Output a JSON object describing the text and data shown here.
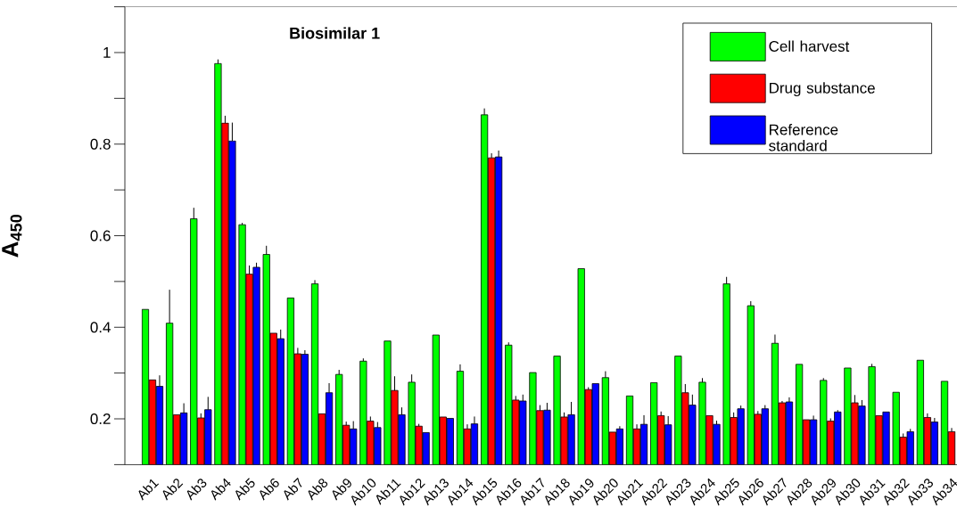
{
  "chart_data": {
    "type": "bar",
    "title": "Biosimilar 1",
    "ylabel": "A$_{450}$",
    "categories": [
      "Ab1",
      "Ab2",
      "Ab3",
      "Ab4",
      "Ab5",
      "Ab6",
      "Ab7",
      "Ab8",
      "Ab9",
      "Ab10",
      "Ab11",
      "Ab12",
      "Ab13",
      "Ab14",
      "Ab15",
      "Ab16",
      "Ab17",
      "Ab18",
      "Ab19",
      "Ab20",
      "Ab21",
      "Ab22",
      "Ab23",
      "Ab24",
      "Ab25",
      "Ab26",
      "Ab27",
      "Ab28",
      "Ab29",
      "Ab30",
      "Ab31",
      "Ab32",
      "Ab33",
      "Ab34"
    ],
    "series": [
      {
        "name": "Cell harvest",
        "color": "#00ff00",
        "values": [
          0.439,
          0.409,
          0.637,
          0.976,
          0.624,
          0.559,
          0.464,
          0.495,
          0.297,
          0.326,
          0.37,
          0.28,
          0.383,
          0.304,
          0.864,
          0.361,
          0.301,
          0.337,
          0.528,
          0.29,
          0.25,
          0.279,
          0.337,
          0.28,
          0.495,
          0.447,
          0.365,
          0.319,
          0.284,
          0.311,
          0.314,
          0.258,
          0.328,
          0.282
        ],
        "errors": [
          null,
          [
            0.409,
            0.482
          ],
          [
            0.637,
            0.661
          ],
          [
            0.976,
            0.985
          ],
          [
            0.624,
            0.628
          ],
          [
            0.559,
            0.578
          ],
          null,
          [
            0.495,
            0.503
          ],
          [
            0.297,
            0.307
          ],
          [
            0.326,
            0.332
          ],
          null,
          [
            0.28,
            0.297
          ],
          null,
          [
            0.304,
            0.319
          ],
          [
            0.864,
            0.878
          ],
          [
            0.361,
            0.367
          ],
          null,
          null,
          null,
          [
            0.29,
            0.304
          ],
          null,
          null,
          null,
          [
            0.28,
            0.289
          ],
          [
            0.495,
            0.51
          ],
          [
            0.447,
            0.457
          ],
          [
            0.365,
            0.384
          ],
          null,
          [
            0.284,
            0.289
          ],
          null,
          [
            0.314,
            0.32
          ],
          null,
          null,
          null
        ]
      },
      {
        "name": "Drug substance",
        "color": "#ff0000",
        "values": [
          0.285,
          0.209,
          0.202,
          0.846,
          0.516,
          0.387,
          0.342,
          0.211,
          0.186,
          0.195,
          0.262,
          0.184,
          0.204,
          0.178,
          0.77,
          0.241,
          0.218,
          0.204,
          0.264,
          0.171,
          0.178,
          0.207,
          0.257,
          0.207,
          0.203,
          0.21,
          0.235,
          0.198,
          0.195,
          0.235,
          0.207,
          0.16,
          0.203,
          0.172
        ],
        "errors": [
          null,
          null,
          [
            0.202,
            0.212
          ],
          [
            0.846,
            0.862
          ],
          [
            0.516,
            0.535
          ],
          null,
          [
            0.342,
            0.355
          ],
          null,
          [
            0.186,
            0.194
          ],
          [
            0.195,
            0.205
          ],
          [
            0.262,
            0.293
          ],
          [
            0.184,
            0.189
          ],
          null,
          [
            0.178,
            0.188
          ],
          [
            0.77,
            0.78
          ],
          [
            0.241,
            0.25
          ],
          [
            0.218,
            0.23
          ],
          [
            0.204,
            0.214
          ],
          [
            0.264,
            0.269
          ],
          null,
          [
            0.178,
            0.188
          ],
          [
            0.207,
            0.216
          ],
          [
            0.257,
            0.276
          ],
          null,
          [
            0.203,
            0.214
          ],
          [
            0.21,
            0.217
          ],
          [
            0.235,
            0.239
          ],
          null,
          [
            0.195,
            0.201
          ],
          [
            0.235,
            0.252
          ],
          null,
          [
            0.16,
            0.168
          ],
          [
            0.203,
            0.212
          ],
          [
            0.172,
            0.18
          ]
        ]
      },
      {
        "name": "Reference standard",
        "color": "#0000ff",
        "values": [
          0.271,
          0.213,
          0.22,
          0.807,
          0.531,
          0.375,
          0.341,
          0.257,
          0.178,
          0.181,
          0.209,
          0.17,
          0.201,
          0.189,
          0.772,
          0.239,
          0.219,
          0.209,
          0.277,
          0.178,
          0.188,
          0.187,
          0.23,
          0.188,
          0.222,
          0.222,
          0.237,
          0.198,
          0.215,
          0.228,
          0.215,
          0.172,
          0.193,
          null
        ],
        "errors": [
          [
            0.271,
            0.295
          ],
          [
            0.213,
            0.234
          ],
          [
            0.22,
            0.248
          ],
          [
            0.807,
            0.847
          ],
          [
            0.531,
            0.541
          ],
          [
            0.375,
            0.395
          ],
          [
            0.341,
            0.35
          ],
          [
            0.257,
            0.278
          ],
          [
            0.178,
            0.195
          ],
          [
            0.181,
            0.193
          ],
          [
            0.209,
            0.225
          ],
          null,
          null,
          [
            0.189,
            0.205
          ],
          [
            0.772,
            0.786
          ],
          [
            0.239,
            0.253
          ],
          [
            0.219,
            0.235
          ],
          [
            0.209,
            0.237
          ],
          null,
          [
            0.178,
            0.184
          ],
          [
            0.188,
            0.208
          ],
          [
            0.187,
            0.206
          ],
          [
            0.23,
            0.253
          ],
          [
            0.188,
            0.196
          ],
          [
            0.222,
            0.229
          ],
          [
            0.222,
            0.23
          ],
          [
            0.237,
            0.247
          ],
          [
            0.198,
            0.207
          ],
          [
            0.215,
            0.219
          ],
          [
            0.228,
            0.241
          ],
          null,
          [
            0.172,
            0.178
          ],
          [
            0.193,
            0.202
          ],
          null
        ]
      }
    ],
    "ylim": [
      0.1,
      1.1
    ],
    "yticks": [
      {
        "value": 0.1,
        "label": null
      },
      0.2,
      {
        "value": 0.3,
        "label": null
      },
      0.4,
      {
        "value": 0.5,
        "label": null
      },
      0.6,
      {
        "value": 0.7,
        "label": null
      },
      0.8,
      {
        "value": 0.9,
        "label": null
      },
      1,
      {
        "value": 1.1,
        "label": null
      }
    ],
    "legend": "top right"
  }
}
